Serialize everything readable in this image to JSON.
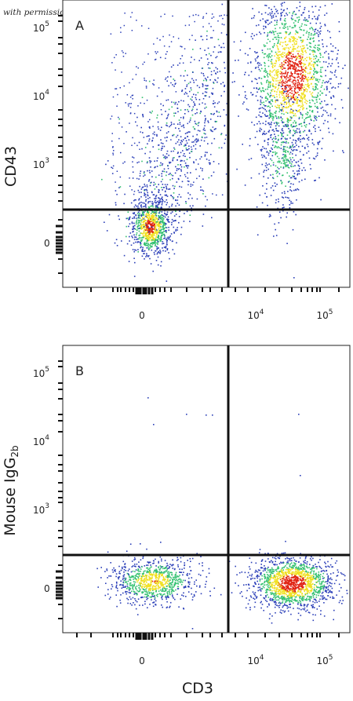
{
  "credit": "with permission from R&D Systems",
  "shared_xlabel": "CD3",
  "chart_data": [
    {
      "type": "scatter",
      "panel_label": "A",
      "ylabel": "CD43",
      "xlabel": "CD3",
      "xscale": "biexponential",
      "yscale": "biexponential",
      "x_ticks": [
        {
          "value": 0,
          "base": "0",
          "exp": ""
        },
        {
          "value": 10000,
          "base": "10",
          "exp": "4"
        },
        {
          "value": 100000,
          "base": "10",
          "exp": "5"
        }
      ],
      "y_ticks": [
        {
          "value": 0,
          "base": "0",
          "exp": ""
        },
        {
          "value": 1000,
          "base": "10",
          "exp": "3"
        },
        {
          "value": 10000,
          "base": "10",
          "exp": "4"
        },
        {
          "value": 100000,
          "base": "10",
          "exp": "5"
        }
      ],
      "quadrant_gate": {
        "x": 3000,
        "y": 200
      },
      "populations": [
        {
          "name": "CD3- CD43 low",
          "center": [
            50,
            30
          ],
          "spread": [
            400,
            150
          ],
          "density": "medium"
        },
        {
          "name": "CD3- CD43 diagonal",
          "center": [
            800,
            5000
          ],
          "spread": "diffuse",
          "density": "low"
        },
        {
          "name": "CD3+ CD43+",
          "center": [
            30000,
            25000
          ],
          "spread": [
            15000,
            20000
          ],
          "density": "high"
        }
      ],
      "colors": {
        "low": "#2b3fb8",
        "mid": "#33c070",
        "high": "#f0e020",
        "peak": "#e02010"
      }
    },
    {
      "type": "scatter",
      "panel_label": "B",
      "ylabel": "Mouse IgG",
      "ylabel_sub": "2b",
      "xlabel": "CD3",
      "xscale": "biexponential",
      "yscale": "biexponential",
      "x_ticks": [
        {
          "value": 0,
          "base": "0",
          "exp": ""
        },
        {
          "value": 10000,
          "base": "10",
          "exp": "4"
        },
        {
          "value": 100000,
          "base": "10",
          "exp": "5"
        }
      ],
      "y_ticks": [
        {
          "value": 0,
          "base": "0",
          "exp": ""
        },
        {
          "value": 1000,
          "base": "10",
          "exp": "3"
        },
        {
          "value": 10000,
          "base": "10",
          "exp": "4"
        },
        {
          "value": 100000,
          "base": "10",
          "exp": "5"
        }
      ],
      "quadrant_gate": {
        "x": 3000,
        "y": 200
      },
      "populations": [
        {
          "name": "CD3- isotype",
          "center": [
            20,
            10
          ],
          "spread": [
            500,
            60
          ],
          "density": "medium"
        },
        {
          "name": "CD3+ isotype",
          "center": [
            30000,
            5
          ],
          "spread": [
            20000,
            60
          ],
          "density": "high"
        }
      ],
      "colors": {
        "low": "#2b3fb8",
        "mid": "#33c070",
        "high": "#f0e020",
        "peak": "#e02010"
      }
    }
  ]
}
